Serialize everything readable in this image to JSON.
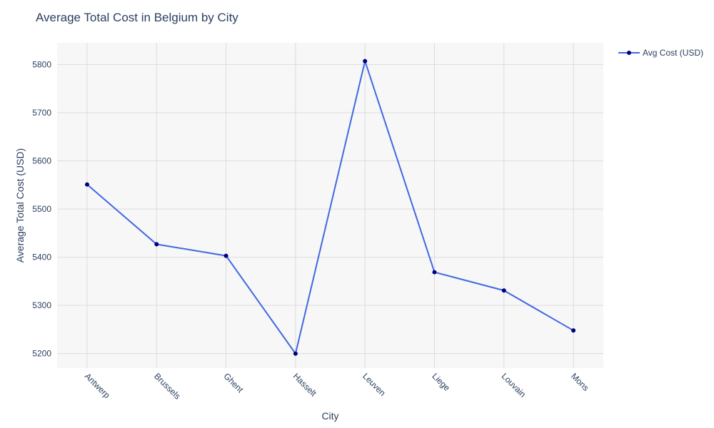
{
  "chart_data": {
    "type": "line",
    "title": "Average Total Cost in Belgium by City",
    "xlabel": "City",
    "ylabel": "Average Total Cost (USD)",
    "categories": [
      "Antwerp",
      "Brussels",
      "Ghent",
      "Hasselt",
      "Leuven",
      "Liege",
      "Louvain",
      "Mons"
    ],
    "series": [
      {
        "name": "Avg Cost (USD)",
        "values": [
          5551,
          5427,
          5403,
          5200,
          5807,
          5369,
          5331,
          5248
        ],
        "line_color": "#4169e1",
        "marker_color": "#000080"
      }
    ],
    "ylim": [
      5170,
      5845
    ],
    "yticks": [
      5200,
      5300,
      5400,
      5500,
      5600,
      5700,
      5800
    ],
    "grid": true,
    "legend_position": "top-right",
    "plot_background": "#f7f7f7",
    "grid_color": "#dcdcdc"
  }
}
